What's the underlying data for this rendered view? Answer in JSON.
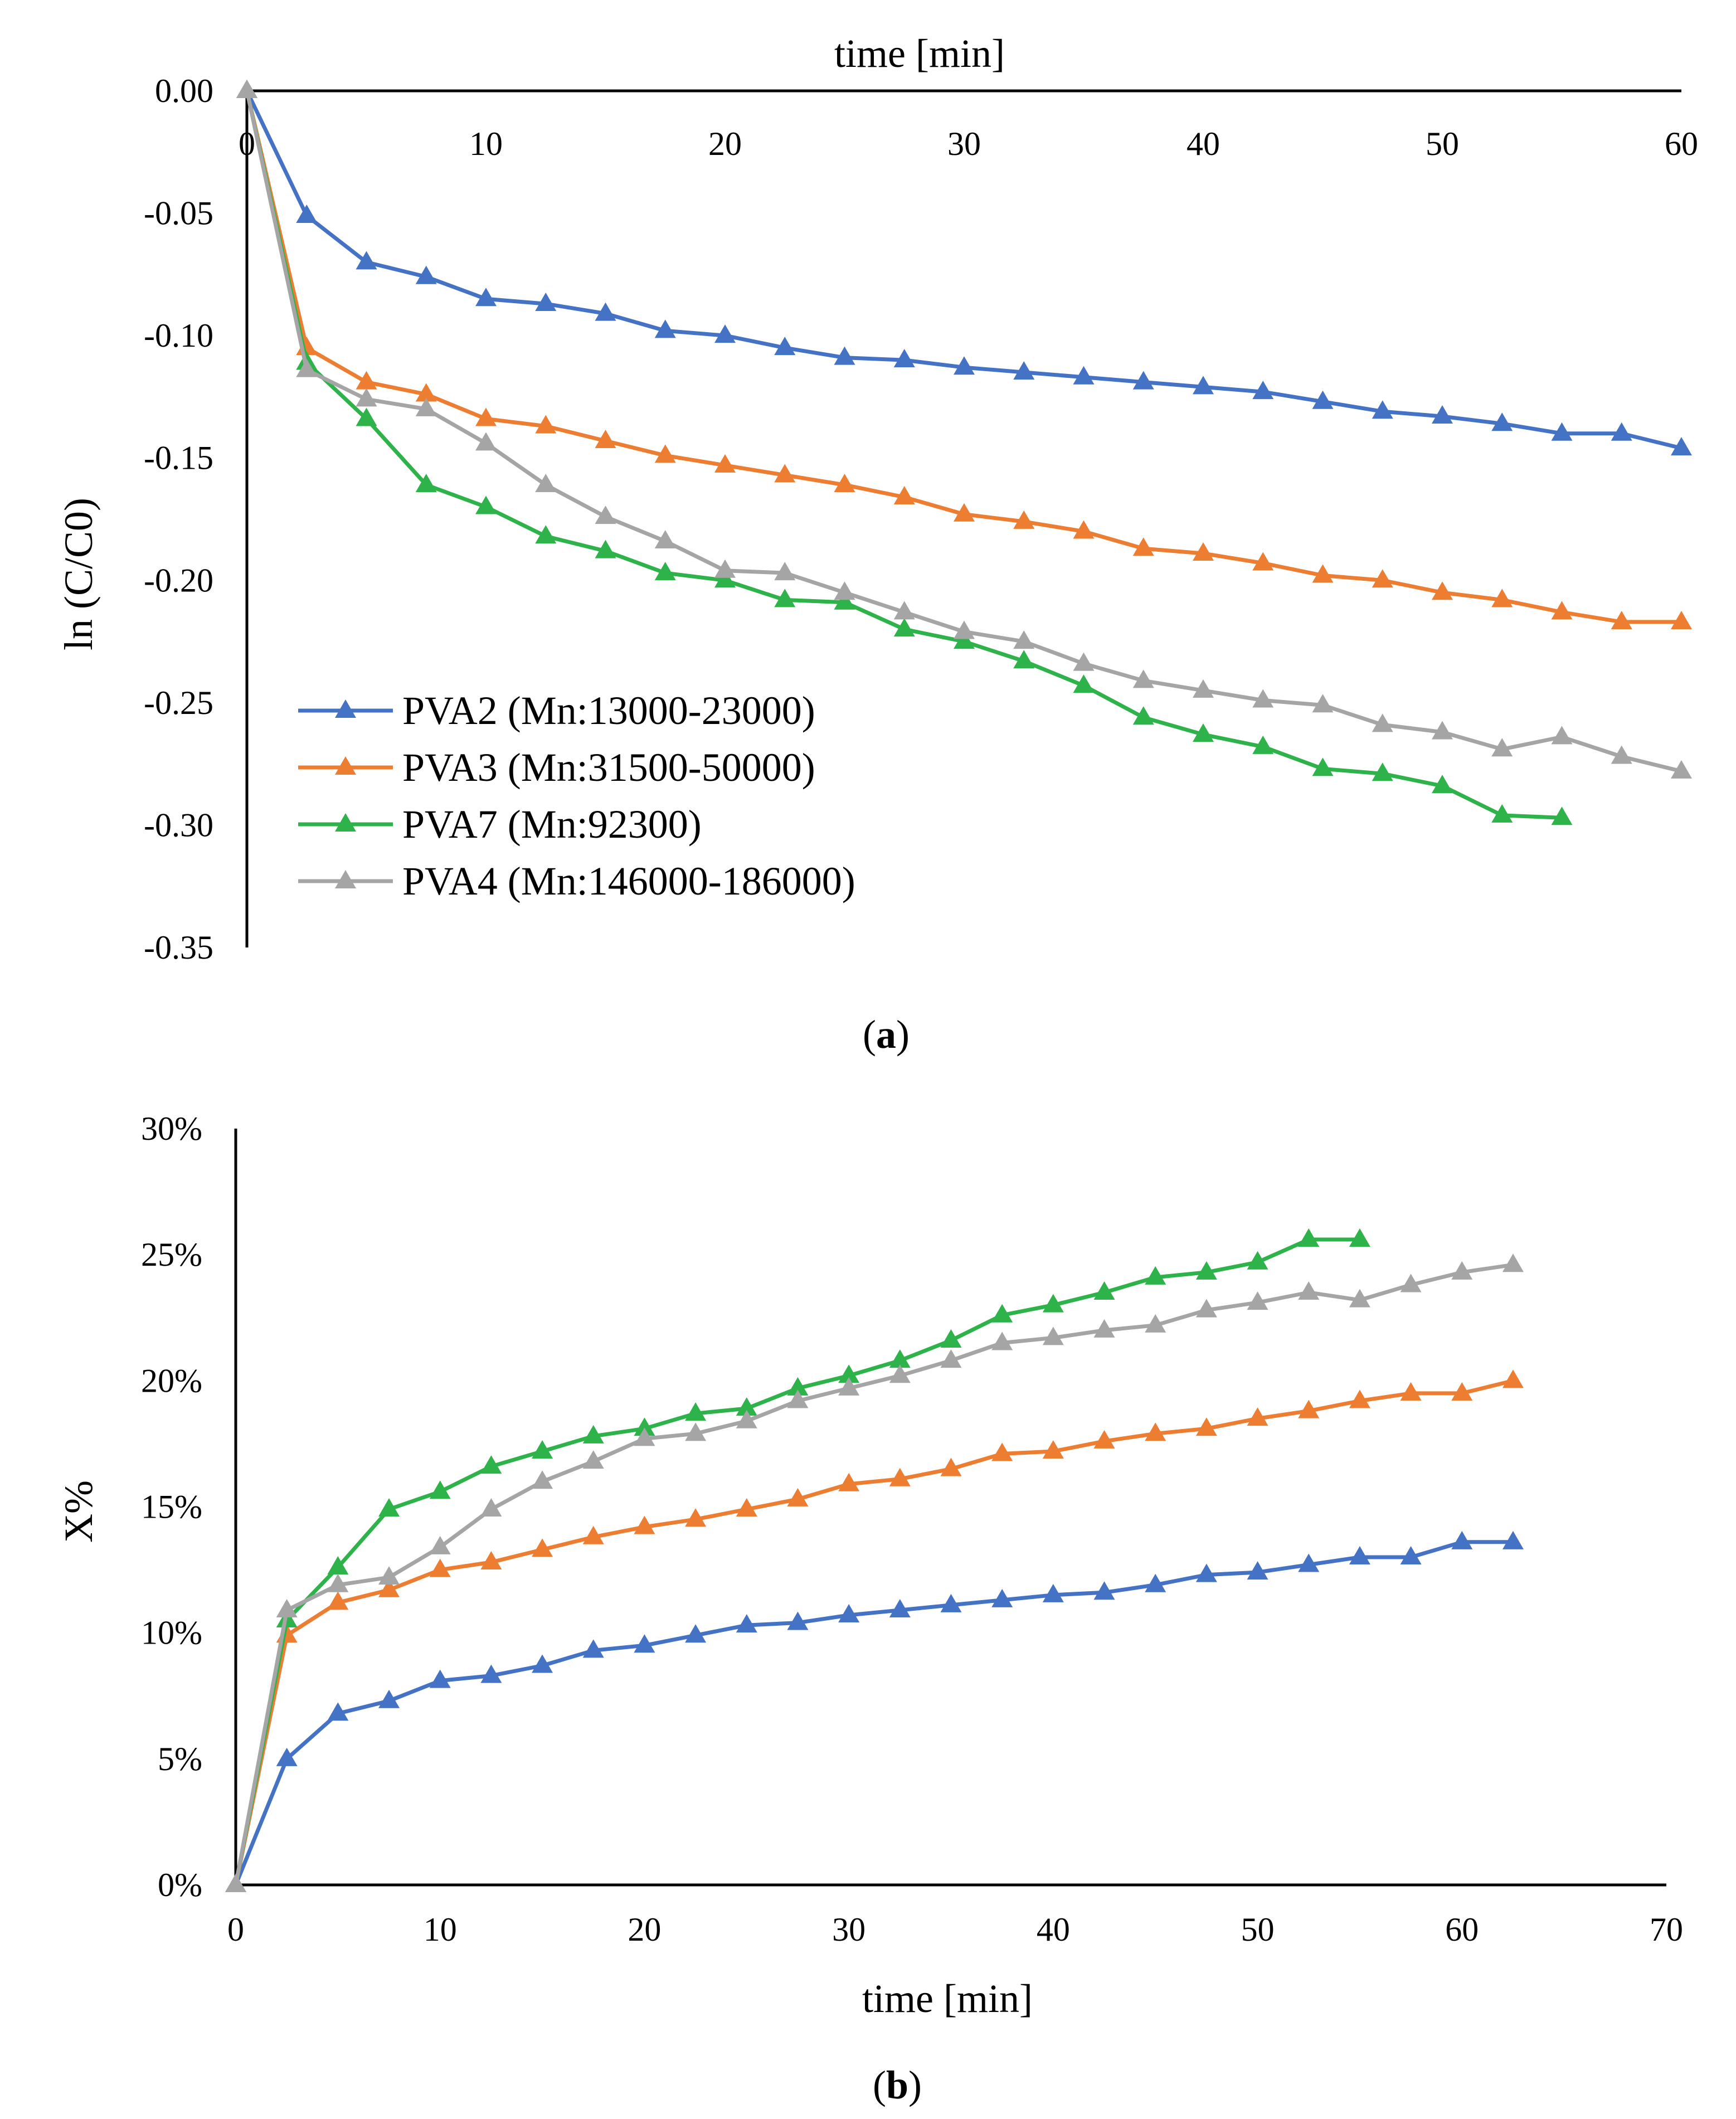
{
  "colors": {
    "PVA2": "#4472C4",
    "PVA3": "#ED7D31",
    "PVA7": "#2EB24A",
    "PVA4": "#A5A5A5"
  },
  "chart_data": [
    {
      "id": "a",
      "type": "line",
      "caption_label": "a",
      "title": "",
      "xlabel": "time [min]",
      "ylabel": "ln (C/C0)",
      "xlim": [
        0,
        60
      ],
      "ylim": [
        -0.35,
        0.0
      ],
      "x_ticks": [
        0,
        10,
        20,
        30,
        40,
        50,
        60
      ],
      "x_tick_labels": [
        "0",
        "10",
        "20",
        "30",
        "40",
        "50",
        "60"
      ],
      "y_ticks": [
        0.0,
        -0.05,
        -0.1,
        -0.15,
        -0.2,
        -0.25,
        -0.3,
        -0.35
      ],
      "y_tick_labels": [
        "0.00",
        "-0.05",
        "-0.10",
        "-0.15",
        "-0.20",
        "-0.25",
        "-0.30",
        "-0.35"
      ],
      "x_axis_position": "top",
      "grid": false,
      "legend_position": "bottom-left",
      "series": [
        {
          "key": "PVA2",
          "name": "PVA2 (Mn:13000-23000)",
          "x": [
            0,
            2.5,
            5,
            7.5,
            10,
            12.5,
            15,
            17.5,
            20,
            22.5,
            25,
            27.5,
            30,
            32.5,
            35,
            37.5,
            40,
            42.5,
            45,
            47.5,
            50,
            52.5,
            55,
            57.5,
            60
          ],
          "y": [
            0,
            -0.051,
            -0.07,
            -0.076,
            -0.085,
            -0.087,
            -0.091,
            -0.098,
            -0.1,
            -0.105,
            -0.109,
            -0.11,
            -0.113,
            -0.115,
            -0.117,
            -0.119,
            -0.121,
            -0.123,
            -0.127,
            -0.131,
            -0.133,
            -0.136,
            -0.14,
            -0.14,
            -0.146
          ]
        },
        {
          "key": "PVA3",
          "name": "PVA3 (Mn:31500-50000)",
          "x": [
            0,
            2.5,
            5,
            7.5,
            10,
            12.5,
            15,
            17.5,
            20,
            22.5,
            25,
            27.5,
            30,
            32.5,
            35,
            37.5,
            40,
            42.5,
            45,
            47.5,
            50,
            52.5,
            55,
            57.5,
            60
          ],
          "y": [
            0,
            -0.105,
            -0.119,
            -0.124,
            -0.134,
            -0.137,
            -0.143,
            -0.149,
            -0.153,
            -0.157,
            -0.161,
            -0.166,
            -0.173,
            -0.176,
            -0.18,
            -0.187,
            -0.189,
            -0.193,
            -0.198,
            -0.2,
            -0.205,
            -0.208,
            -0.213,
            -0.217,
            -0.217
          ]
        },
        {
          "key": "PVA7",
          "name": "PVA7 (Mn:92300)",
          "x": [
            0,
            2.5,
            5,
            7.5,
            10,
            12.5,
            15,
            17.5,
            20,
            22.5,
            25,
            27.5,
            30,
            32.5,
            35,
            37.5,
            40,
            42.5,
            45,
            47.5,
            50,
            52.5,
            55
          ],
          "y": [
            0,
            -0.111,
            -0.134,
            -0.161,
            -0.17,
            -0.182,
            -0.188,
            -0.197,
            -0.2,
            -0.208,
            -0.209,
            -0.22,
            -0.225,
            -0.233,
            -0.243,
            -0.256,
            -0.263,
            -0.268,
            -0.277,
            -0.279,
            -0.284,
            -0.296,
            -0.297
          ]
        },
        {
          "key": "PVA4",
          "name": "PVA4 (Mn:146000-186000)",
          "x": [
            0,
            2.5,
            5,
            7.5,
            10,
            12.5,
            15,
            17.5,
            20,
            22.5,
            25,
            27.5,
            30,
            32.5,
            35,
            37.5,
            40,
            42.5,
            45,
            47.5,
            50,
            52.5,
            55,
            57.5,
            60
          ],
          "y": [
            0,
            -0.114,
            -0.126,
            -0.13,
            -0.144,
            -0.161,
            -0.174,
            -0.184,
            -0.196,
            -0.197,
            -0.205,
            -0.213,
            -0.221,
            -0.225,
            -0.234,
            -0.241,
            -0.245,
            -0.249,
            -0.251,
            -0.259,
            -0.262,
            -0.269,
            -0.264,
            -0.272,
            -0.278
          ]
        }
      ]
    },
    {
      "id": "b",
      "type": "line",
      "caption_label": "b",
      "title": "",
      "xlabel": "time [min]",
      "ylabel": "X%",
      "xlim": [
        0,
        70
      ],
      "ylim": [
        0,
        30
      ],
      "x_ticks": [
        0,
        10,
        20,
        30,
        40,
        50,
        60,
        70
      ],
      "x_tick_labels": [
        "0",
        "10",
        "20",
        "30",
        "40",
        "50",
        "60",
        "70"
      ],
      "y_ticks": [
        0,
        5,
        10,
        15,
        20,
        25,
        30
      ],
      "y_tick_labels": [
        "0%",
        "5%",
        "10%",
        "15%",
        "20%",
        "25%",
        "30%"
      ],
      "x_axis_position": "bottom",
      "grid": false,
      "legend_position": "none",
      "series": [
        {
          "key": "PVA2",
          "name": "PVA2",
          "x": [
            0,
            2.5,
            5,
            7.5,
            10,
            12.5,
            15,
            17.5,
            20,
            22.5,
            25,
            27.5,
            30,
            32.5,
            35,
            37.5,
            40,
            42.5,
            45,
            47.5,
            50,
            52.5,
            55,
            57.5,
            60,
            62.5
          ],
          "y": [
            0,
            5.0,
            6.8,
            7.3,
            8.1,
            8.3,
            8.7,
            9.3,
            9.5,
            9.9,
            10.3,
            10.4,
            10.7,
            10.9,
            11.1,
            11.3,
            11.5,
            11.6,
            11.9,
            12.3,
            12.4,
            12.7,
            13.0,
            13.0,
            13.6,
            13.6
          ]
        },
        {
          "key": "PVA3",
          "name": "PVA3",
          "x": [
            0,
            2.5,
            5,
            7.5,
            10,
            12.5,
            15,
            17.5,
            20,
            22.5,
            25,
            27.5,
            30,
            32.5,
            35,
            37.5,
            40,
            42.5,
            45,
            47.5,
            50,
            52.5,
            55,
            57.5,
            60,
            62.5
          ],
          "y": [
            0,
            9.9,
            11.2,
            11.7,
            12.5,
            12.8,
            13.3,
            13.8,
            14.2,
            14.5,
            14.9,
            15.3,
            15.9,
            16.1,
            16.5,
            17.1,
            17.2,
            17.6,
            17.9,
            18.1,
            18.5,
            18.8,
            19.2,
            19.5,
            19.5,
            20.0
          ]
        },
        {
          "key": "PVA7",
          "name": "PVA7",
          "x": [
            0,
            2.5,
            5,
            7.5,
            10,
            12.5,
            15,
            17.5,
            20,
            22.5,
            25,
            27.5,
            30,
            32.5,
            35,
            37.5,
            40,
            42.5,
            45,
            47.5,
            50,
            52.5,
            55
          ],
          "y": [
            0,
            10.5,
            12.6,
            14.9,
            15.6,
            16.6,
            17.2,
            17.8,
            18.1,
            18.7,
            18.9,
            19.7,
            20.2,
            20.8,
            21.6,
            22.6,
            23.0,
            23.5,
            24.1,
            24.3,
            24.7,
            25.6,
            25.6
          ]
        },
        {
          "key": "PVA4",
          "name": "PVA4",
          "x": [
            0,
            2.5,
            5,
            7.5,
            10,
            12.5,
            15,
            17.5,
            20,
            22.5,
            25,
            27.5,
            30,
            32.5,
            35,
            37.5,
            40,
            42.5,
            45,
            47.5,
            50,
            52.5,
            55,
            57.5,
            60,
            62.5
          ],
          "y": [
            0,
            10.9,
            11.9,
            12.2,
            13.4,
            14.9,
            16.0,
            16.8,
            17.7,
            17.9,
            18.4,
            19.2,
            19.7,
            20.2,
            20.8,
            21.5,
            21.7,
            22.0,
            22.2,
            22.8,
            23.1,
            23.5,
            23.2,
            23.8,
            24.3,
            24.6
          ]
        }
      ]
    }
  ]
}
